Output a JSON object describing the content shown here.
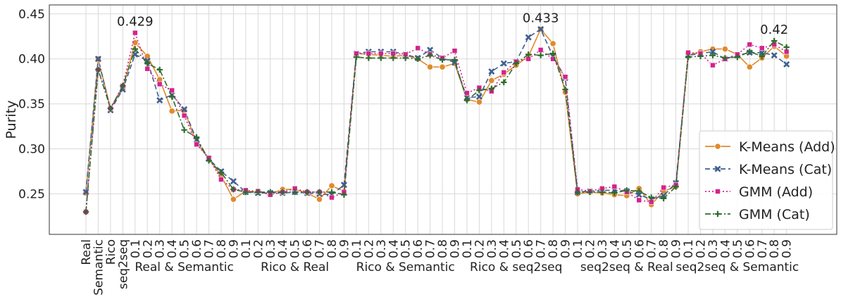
{
  "chart_data": {
    "type": "line",
    "ylabel": "Purity",
    "ylim": [
      0.205,
      0.46
    ],
    "y_ticks": [
      "0.25",
      "0.30",
      "0.35",
      "0.40",
      "0.45"
    ],
    "grid": true,
    "legend_position": "lower-right",
    "standalone_labels": [
      "Real",
      "Semantic",
      "Rico",
      "seq2seq"
    ],
    "step_labels": [
      "0.1",
      "0.2",
      "0.3",
      "0.4",
      "0.5",
      "0.6",
      "0.7",
      "0.8",
      "0.9"
    ],
    "groups": [
      "Real & Semantic",
      "Rico & Real",
      "Rico & Semantic",
      "Rico & seq2seq",
      "seq2seq & Real",
      "seq2seq & Semantic"
    ],
    "series": [
      {
        "name": "K-Means (Add)",
        "color": "#e08a2c",
        "dash": "solid",
        "marker": "circle",
        "values": [
          0.251,
          0.4,
          0.345,
          0.367,
          0.418,
          0.403,
          0.377,
          0.342,
          0.343,
          0.307,
          0.289,
          0.27,
          0.244,
          0.253,
          0.252,
          0.25,
          0.255,
          0.255,
          0.251,
          0.244,
          0.259,
          0.253,
          0.406,
          0.405,
          0.404,
          0.403,
          0.404,
          0.4,
          0.391,
          0.391,
          0.395,
          0.355,
          0.352,
          0.376,
          0.383,
          0.393,
          0.403,
          0.433,
          0.417,
          0.363,
          0.25,
          0.252,
          0.251,
          0.249,
          0.248,
          0.256,
          0.238,
          0.253,
          0.258,
          0.404,
          0.408,
          0.411,
          0.411,
          0.405,
          0.391,
          0.401,
          0.414,
          0.403
        ]
      },
      {
        "name": "K-Means (Cat)",
        "color": "#3f5f8f",
        "dash": "dashed",
        "marker": "x",
        "values": [
          0.252,
          0.4,
          0.343,
          0.366,
          0.405,
          0.398,
          0.354,
          0.36,
          0.344,
          0.31,
          0.289,
          0.275,
          0.264,
          0.252,
          0.251,
          0.251,
          0.251,
          0.252,
          0.251,
          0.25,
          0.249,
          0.26,
          0.406,
          0.408,
          0.408,
          0.408,
          0.405,
          0.401,
          0.41,
          0.401,
          0.396,
          0.357,
          0.358,
          0.386,
          0.395,
          0.397,
          0.424,
          0.433,
          0.403,
          0.379,
          0.252,
          0.253,
          0.254,
          0.254,
          0.253,
          0.249,
          0.244,
          0.248,
          0.262,
          0.404,
          0.406,
          0.408,
          0.4,
          0.404,
          0.407,
          0.407,
          0.404,
          0.394
        ]
      },
      {
        "name": "GMM (Add)",
        "color": "#d4228c",
        "dash": "dotted",
        "marker": "square",
        "values": [
          0.23,
          0.388,
          0.345,
          0.37,
          0.429,
          0.389,
          0.372,
          0.365,
          0.337,
          0.305,
          0.29,
          0.266,
          0.255,
          0.254,
          0.253,
          0.249,
          0.252,
          0.256,
          0.252,
          0.252,
          0.246,
          0.252,
          0.406,
          0.406,
          0.406,
          0.406,
          0.405,
          0.412,
          0.405,
          0.401,
          0.409,
          0.362,
          0.368,
          0.364,
          0.385,
          0.397,
          0.4,
          0.41,
          0.4,
          0.38,
          0.255,
          0.253,
          0.256,
          0.258,
          0.252,
          0.243,
          0.241,
          0.257,
          0.26,
          0.407,
          0.406,
          0.393,
          0.4,
          0.405,
          0.416,
          0.412,
          0.416,
          0.408
        ]
      },
      {
        "name": "GMM (Cat)",
        "color": "#2e6b2e",
        "dash": "dashdot",
        "marker": "plus",
        "values": [
          0.23,
          0.388,
          0.345,
          0.37,
          0.411,
          0.395,
          0.388,
          0.358,
          0.321,
          0.313,
          0.287,
          0.274,
          0.255,
          0.252,
          0.252,
          0.252,
          0.252,
          0.252,
          0.252,
          0.252,
          0.252,
          0.249,
          0.402,
          0.401,
          0.401,
          0.401,
          0.401,
          0.4,
          0.404,
          0.399,
          0.399,
          0.354,
          0.365,
          0.367,
          0.374,
          0.395,
          0.405,
          0.404,
          0.406,
          0.366,
          0.252,
          0.252,
          0.252,
          0.251,
          0.254,
          0.253,
          0.246,
          0.245,
          0.258,
          0.402,
          0.403,
          0.404,
          0.401,
          0.402,
          0.408,
          0.403,
          0.42,
          0.413
        ]
      }
    ],
    "annotations": [
      {
        "text": "0.429",
        "index": 4,
        "value": 0.429
      },
      {
        "text": "0.433",
        "index": 37,
        "value": 0.433
      },
      {
        "text": "0.42",
        "index": 56,
        "value": 0.42
      }
    ]
  }
}
